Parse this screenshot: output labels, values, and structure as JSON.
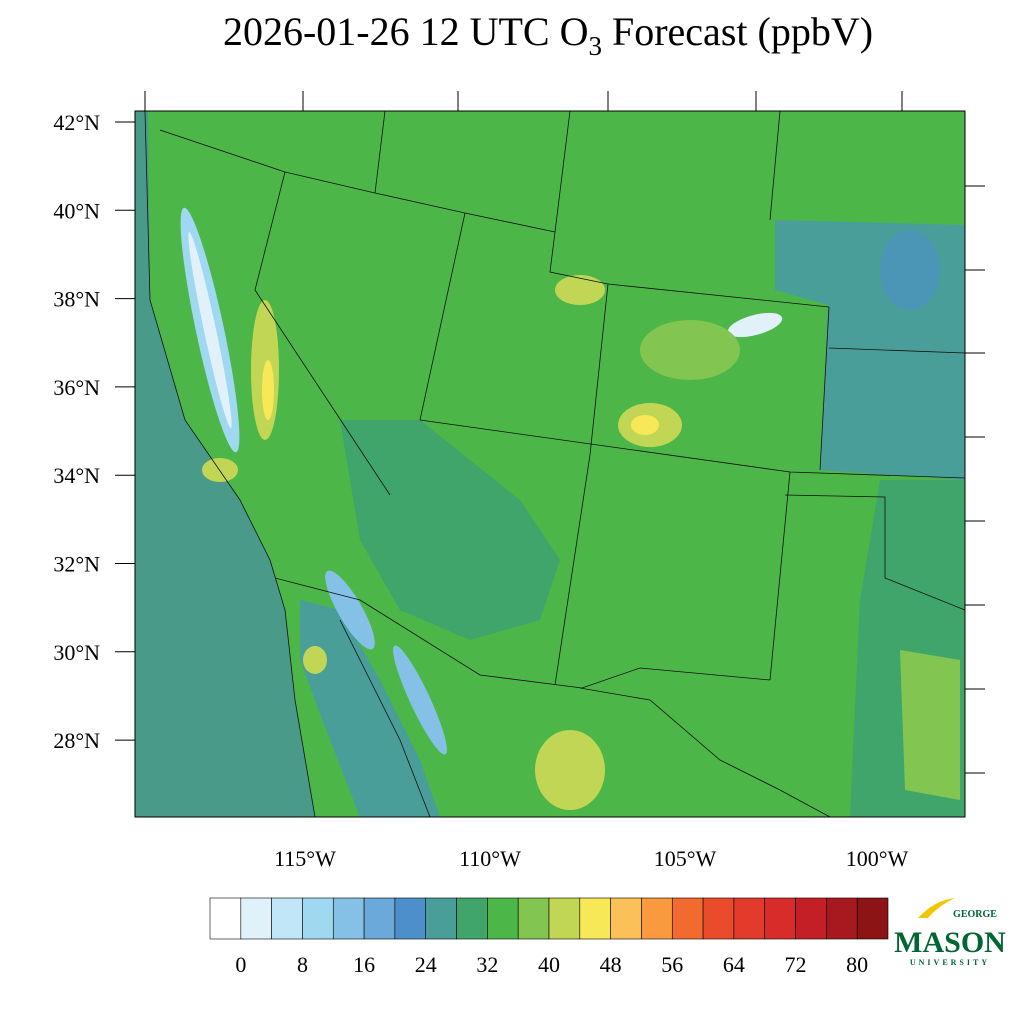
{
  "title": {
    "prefix": "2026-01-26 12 UTC O",
    "subscript": "3",
    "suffix": " Forecast (ppbV)"
  },
  "map": {
    "lat_labels": [
      "42°N",
      "40°N",
      "38°N",
      "36°N",
      "34°N",
      "32°N",
      "30°N",
      "28°N"
    ],
    "lon_labels": [
      "115°W",
      "110°W",
      "105°W",
      "100°W"
    ]
  },
  "colorbar": {
    "lim": [
      -4,
      84
    ],
    "labels": [
      0,
      8,
      16,
      24,
      32,
      40,
      48,
      56,
      64,
      72,
      80
    ],
    "colors": [
      "#ffffff",
      "#e0f1fa",
      "#c0e6f7",
      "#a0d8f2",
      "#85c1e6",
      "#6aa9da",
      "#4d8fca",
      "#4a9e9a",
      "#3fa56a",
      "#4cb648",
      "#82c550",
      "#c2d655",
      "#f7e857",
      "#fbc057",
      "#f99a3e",
      "#f26b2e",
      "#ea4b2b",
      "#e23a2b",
      "#d82c2b",
      "#c41f26",
      "#a8191f",
      "#8c1414"
    ]
  },
  "logo": {
    "top": "GEORGE",
    "main": "MASON",
    "bottom": "UNIVERSITY"
  }
}
